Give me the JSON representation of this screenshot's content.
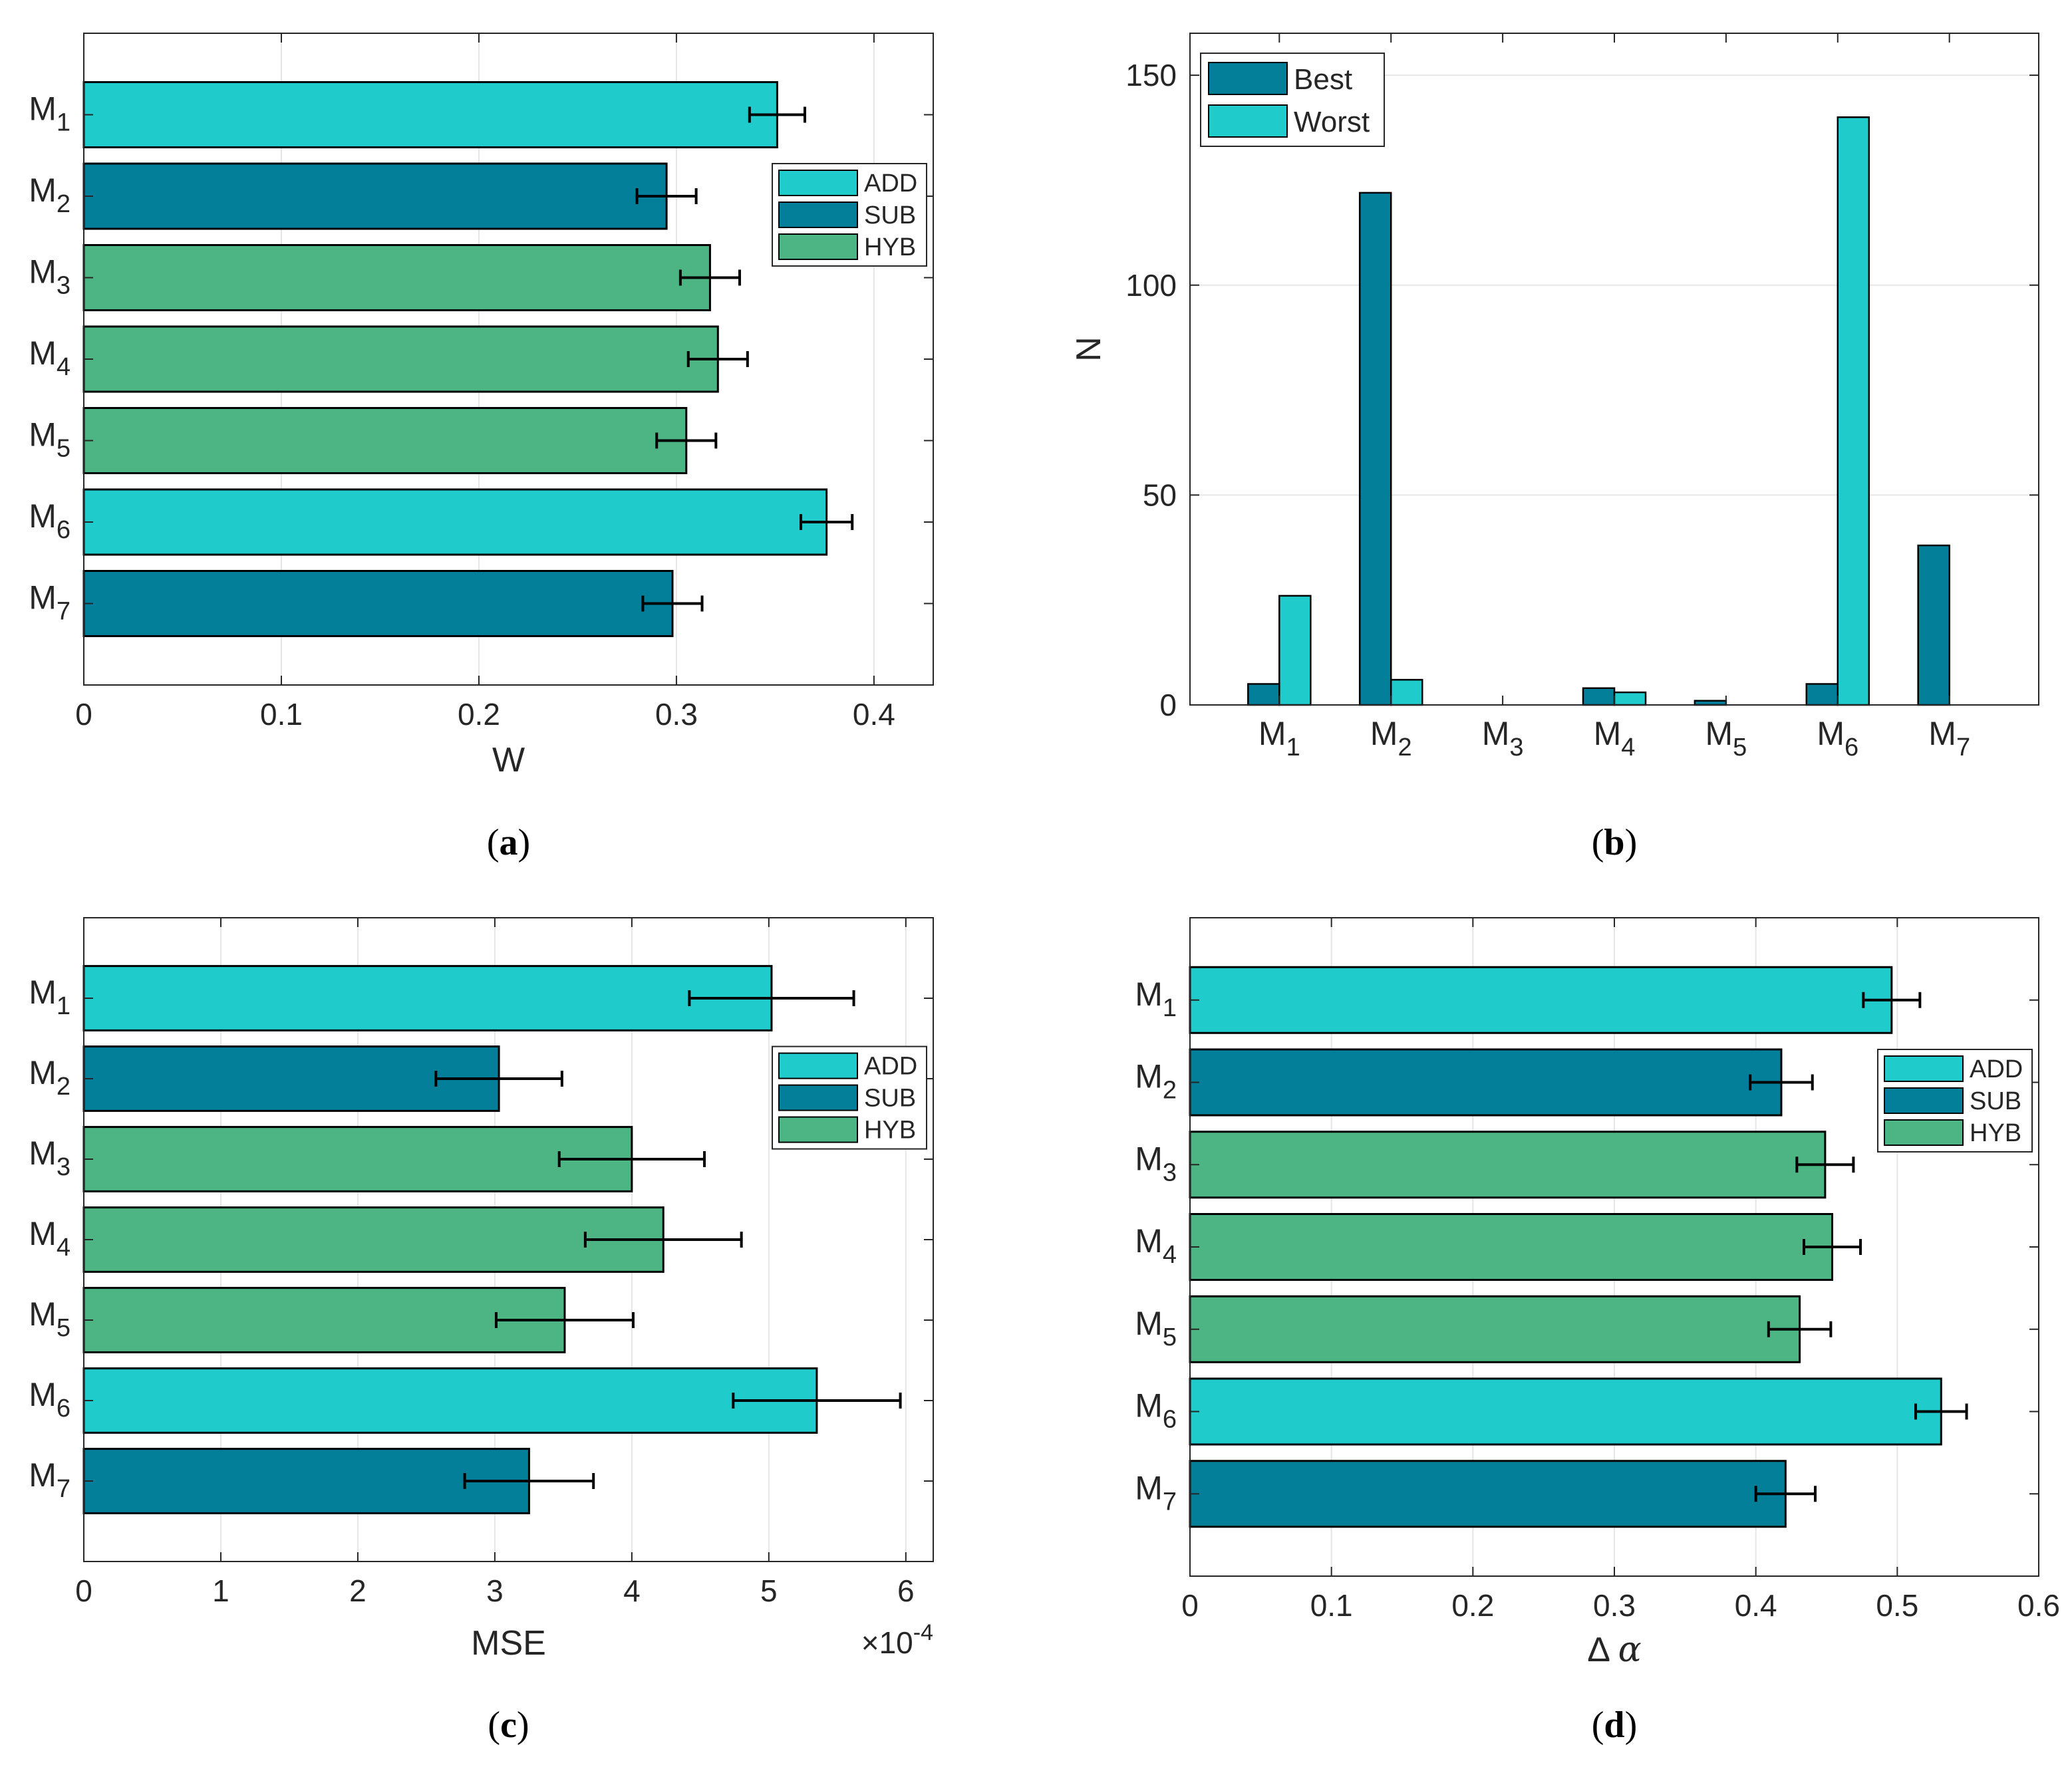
{
  "colors": {
    "ADD": "#20cbcb",
    "SUB": "#037f9a",
    "HYB": "#4cb583",
    "Best": "#037f9a",
    "Worst": "#20cbcb"
  },
  "chart_data": [
    {
      "id": "a",
      "type": "bar",
      "orientation": "horizontal",
      "caption_letter": "a",
      "categories": [
        {
          "base": "M",
          "sub": "1"
        },
        {
          "base": "M",
          "sub": "2"
        },
        {
          "base": "M",
          "sub": "3"
        },
        {
          "base": "M",
          "sub": "4"
        },
        {
          "base": "M",
          "sub": "5"
        },
        {
          "base": "M",
          "sub": "6"
        },
        {
          "base": "M",
          "sub": "7"
        }
      ],
      "values": [
        0.351,
        0.295,
        0.317,
        0.321,
        0.305,
        0.376,
        0.298
      ],
      "errors": [
        0.014,
        0.015,
        0.015,
        0.015,
        0.015,
        0.013,
        0.015
      ],
      "groups": [
        "ADD",
        "SUB",
        "HYB",
        "HYB",
        "HYB",
        "ADD",
        "SUB"
      ],
      "xlabel": "W",
      "ylabel": "",
      "xlim": [
        0,
        0.43
      ],
      "xticks": [
        0,
        0.1,
        0.2,
        0.3,
        0.4
      ],
      "xtick_labels": [
        "0",
        "0.1",
        "0.2",
        "0.3",
        "0.4"
      ],
      "legend": [
        "ADD",
        "SUB",
        "HYB"
      ],
      "legend_position": "center-right",
      "grid": true
    },
    {
      "id": "b",
      "type": "bar",
      "orientation": "vertical",
      "caption_letter": "b",
      "categories": [
        {
          "base": "M",
          "sub": "1"
        },
        {
          "base": "M",
          "sub": "2"
        },
        {
          "base": "M",
          "sub": "3"
        },
        {
          "base": "M",
          "sub": "4"
        },
        {
          "base": "M",
          "sub": "5"
        },
        {
          "base": "M",
          "sub": "6"
        },
        {
          "base": "M",
          "sub": "7"
        }
      ],
      "series": [
        {
          "name": "Best",
          "values": [
            5,
            122,
            0,
            4,
            1,
            5,
            38
          ]
        },
        {
          "name": "Worst",
          "values": [
            26,
            6,
            0,
            3,
            0,
            140,
            0
          ]
        }
      ],
      "xlabel": "",
      "ylabel": "N",
      "ylim": [
        0,
        160
      ],
      "yticks": [
        0,
        50,
        100,
        150
      ],
      "ytick_labels": [
        "0",
        "50",
        "100",
        "150"
      ],
      "legend_position": "top-left",
      "grid": true
    },
    {
      "id": "c",
      "type": "bar",
      "orientation": "horizontal",
      "caption_letter": "c",
      "categories": [
        {
          "base": "M",
          "sub": "1"
        },
        {
          "base": "M",
          "sub": "2"
        },
        {
          "base": "M",
          "sub": "3"
        },
        {
          "base": "M",
          "sub": "4"
        },
        {
          "base": "M",
          "sub": "5"
        },
        {
          "base": "M",
          "sub": "6"
        },
        {
          "base": "M",
          "sub": "7"
        }
      ],
      "values": [
        5.02,
        3.03,
        4.0,
        4.23,
        3.51,
        5.35,
        3.25
      ],
      "errors": [
        0.6,
        0.46,
        0.53,
        0.57,
        0.5,
        0.61,
        0.47
      ],
      "groups": [
        "ADD",
        "SUB",
        "HYB",
        "HYB",
        "HYB",
        "ADD",
        "SUB"
      ],
      "xlabel": "MSE",
      "exponent_base": "×10",
      "exponent_power": "-4",
      "ylabel": "",
      "xlim": [
        0,
        6.2
      ],
      "xticks": [
        0,
        1,
        2,
        3,
        4,
        5,
        6
      ],
      "xtick_labels": [
        "0",
        "1",
        "2",
        "3",
        "4",
        "5",
        "6"
      ],
      "legend": [
        "ADD",
        "SUB",
        "HYB"
      ],
      "legend_position": "center-right",
      "grid": true
    },
    {
      "id": "d",
      "type": "bar",
      "orientation": "horizontal",
      "caption_letter": "d",
      "categories": [
        {
          "base": "M",
          "sub": "1"
        },
        {
          "base": "M",
          "sub": "2"
        },
        {
          "base": "M",
          "sub": "3"
        },
        {
          "base": "M",
          "sub": "4"
        },
        {
          "base": "M",
          "sub": "5"
        },
        {
          "base": "M",
          "sub": "6"
        },
        {
          "base": "M",
          "sub": "7"
        }
      ],
      "values": [
        0.496,
        0.418,
        0.449,
        0.454,
        0.431,
        0.531,
        0.421
      ],
      "errors": [
        0.02,
        0.022,
        0.02,
        0.02,
        0.022,
        0.018,
        0.021
      ],
      "groups": [
        "ADD",
        "SUB",
        "HYB",
        "HYB",
        "HYB",
        "ADD",
        "SUB"
      ],
      "xlabel_prefix": "Δ",
      "xlabel_symbol": "α",
      "ylabel": "",
      "xlim": [
        0,
        0.6
      ],
      "xticks": [
        0,
        0.1,
        0.2,
        0.3,
        0.4,
        0.5,
        0.6
      ],
      "xtick_labels": [
        "0",
        "0.1",
        "0.2",
        "0.3",
        "0.4",
        "0.5",
        "0.6"
      ],
      "legend": [
        "ADD",
        "SUB",
        "HYB"
      ],
      "legend_position": "center-right",
      "grid": true
    }
  ]
}
